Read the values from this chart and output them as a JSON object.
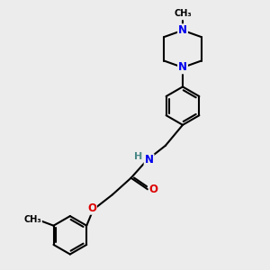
{
  "background_color": "#ececec",
  "bond_color": "#000000",
  "bond_width": 1.5,
  "atom_colors": {
    "N": "#0000ee",
    "O": "#dd0000",
    "H": "#4a8888"
  },
  "font_size_atom": 8.5,
  "font_size_small": 7.0
}
